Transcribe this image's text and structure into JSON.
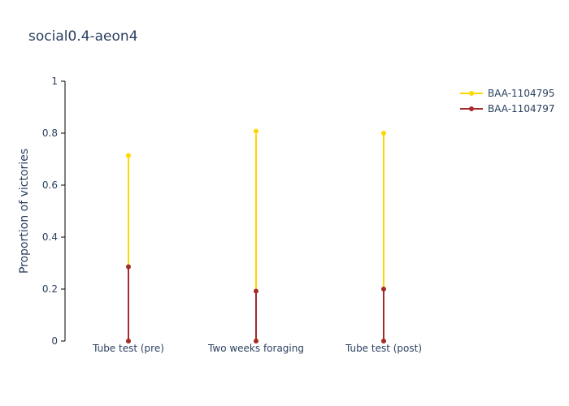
{
  "chart_data": {
    "type": "line",
    "title": "social0.4-aeon4",
    "xlabel": "",
    "ylabel": "Proportion of victories",
    "ylim": [
      0,
      1
    ],
    "yticks": [
      "0",
      "0.2",
      "0.4",
      "0.6",
      "0.8",
      "1"
    ],
    "categories": [
      "Tube test (pre)",
      "Two weeks foraging",
      "Tube test (post)"
    ],
    "grid": false,
    "legend_position": "top-right",
    "series": [
      {
        "name": "BAA-1104795",
        "color": "#FFD700",
        "values": [
          0.714,
          0.808,
          0.8
        ]
      },
      {
        "name": "BAA-1104797",
        "color": "#A52A2A",
        "values": [
          0.286,
          0.192,
          0.2
        ]
      }
    ]
  }
}
